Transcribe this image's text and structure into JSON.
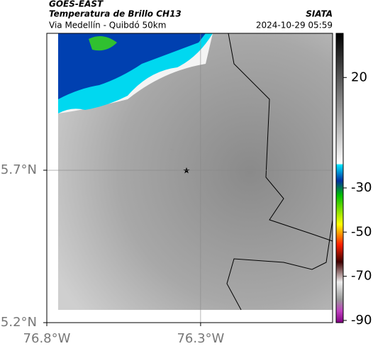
{
  "header": {
    "product": "GOES-EAST",
    "title": "Temperatura de Brillo CH13",
    "location": "Via Medellín - Quibdó 50km",
    "source": "SIATA",
    "datetime": "2024-10-29 05:59"
  },
  "map": {
    "xlim": [
      -76.8,
      -75.871
    ],
    "ylim": [
      5.2,
      6.149
    ],
    "xticks": [
      {
        "value": -76.8,
        "label": "76.8°W"
      },
      {
        "value": -76.3,
        "label": "76.3°W"
      }
    ],
    "yticks": [
      {
        "value": 5.7,
        "label": "5.7°N"
      },
      {
        "value": 5.2,
        "label": "5.2°N"
      }
    ]
  },
  "colorbar": {
    "lim": [
      40,
      -91
    ],
    "ticks": [
      20,
      -30,
      -50,
      -70,
      -90
    ]
  }
}
